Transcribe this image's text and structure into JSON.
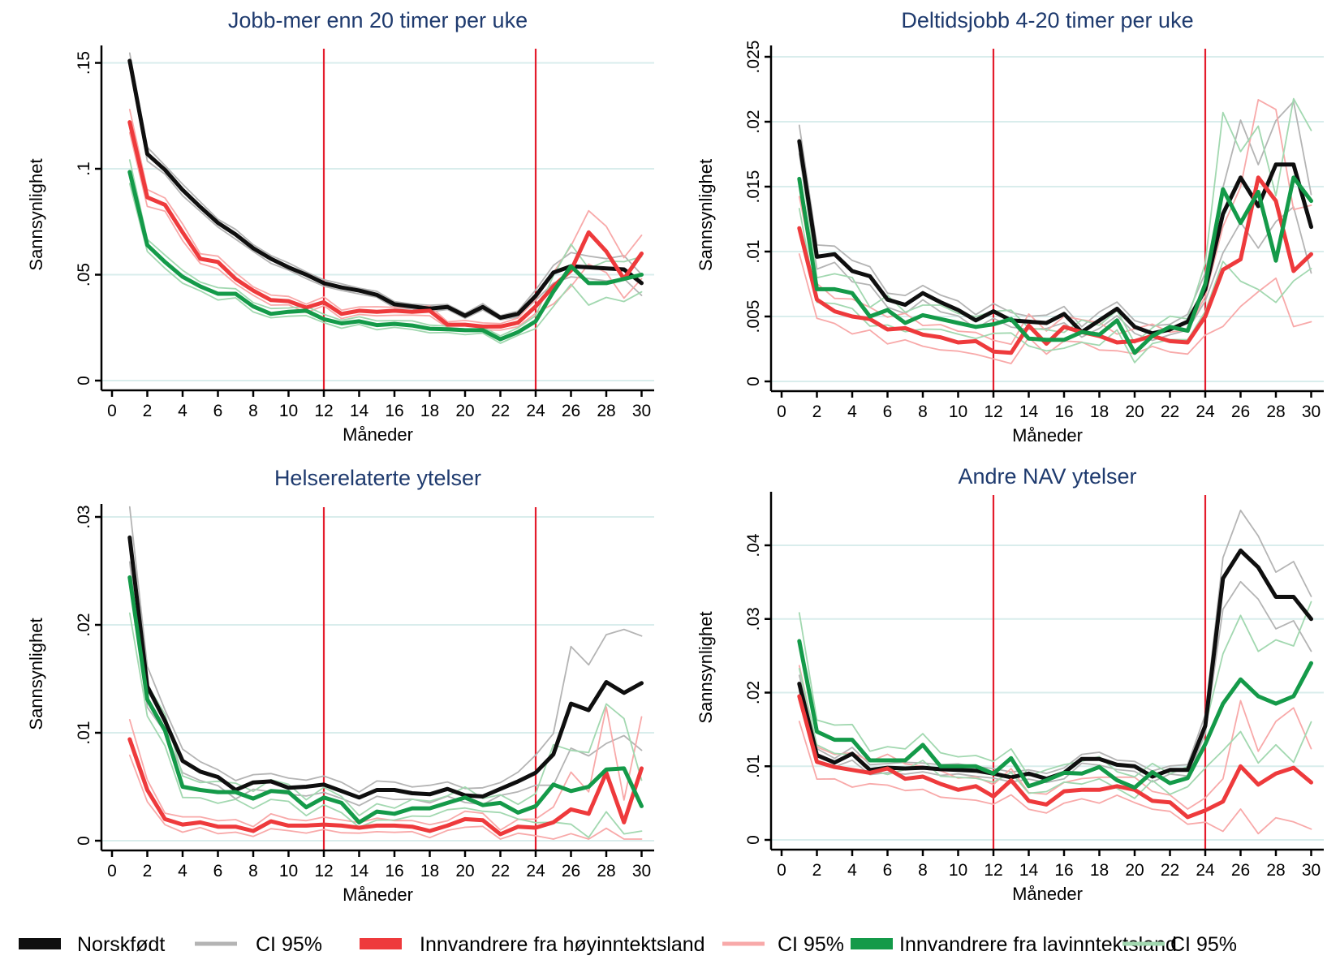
{
  "figure": {
    "ylabel": "Sannsynlighet",
    "xlabel": "Måneder",
    "x_tick_labels": [
      "0",
      "2",
      "4",
      "6",
      "8",
      "10",
      "12",
      "14",
      "16",
      "18",
      "20",
      "22",
      "24",
      "26",
      "28",
      "30"
    ],
    "months": [
      1,
      2,
      3,
      4,
      5,
      6,
      7,
      8,
      9,
      10,
      11,
      12,
      13,
      14,
      15,
      16,
      17,
      18,
      19,
      20,
      21,
      22,
      23,
      24,
      25,
      26,
      27,
      28,
      29,
      30
    ],
    "vline_months": [
      12,
      24
    ],
    "colors": {
      "norskfodt": "#0f0f0f",
      "hoyinntektsland": "#ee3a3c",
      "lavinntektsland": "#149a49",
      "ci_gray": "#b4b4b4",
      "ci_pink": "#f8a9a9",
      "ci_lightgreen": "#a2d8b0",
      "vline_red": "#e41c2c",
      "gridline": "#d9edec",
      "title_navy": "#1e3a6e"
    }
  },
  "legend": {
    "items": [
      {
        "label": "Norskfødt",
        "type": "bar",
        "color_key": "norskfodt"
      },
      {
        "label": "CI 95%",
        "type": "line",
        "color_key": "ci_gray"
      },
      {
        "label": "Innvandrere fra høyinntektsland",
        "type": "bar",
        "color_key": "hoyinntektsland"
      },
      {
        "label": "CI 95%",
        "type": "line",
        "color_key": "ci_pink"
      },
      {
        "label": "Innvandrere fra lavinntektsland",
        "type": "bar",
        "color_key": "lavinntektsland"
      },
      {
        "label": "CI 95%",
        "type": "line",
        "color_key": "ci_lightgreen"
      }
    ]
  },
  "chart_data": [
    {
      "type": "line",
      "title": "Jobb-mer enn 20 timer per uke",
      "xlabel": "Måneder",
      "ylabel": "Sannsynlighet",
      "ylim": [
        0,
        0.157
      ],
      "ytick_values": [
        0,
        0.05,
        0.1,
        0.15
      ],
      "ytick_labels": [
        "0",
        ".05",
        ".1",
        ".15"
      ],
      "series": [
        {
          "name": "Norskfødt",
          "color_key": "norskfodt",
          "ci_color_key": "ci_gray",
          "ci_frac_early": 0.02,
          "ci_frac_late": 0.09,
          "ci_abs": 0.0006,
          "values": [
            0.151,
            0.107,
            0.0995,
            0.09,
            0.082,
            0.0745,
            0.069,
            0.0625,
            0.0575,
            0.0535,
            0.05,
            0.046,
            0.044,
            0.0425,
            0.0405,
            0.036,
            0.035,
            0.034,
            0.0348,
            0.0306,
            0.0348,
            0.0297,
            0.0315,
            0.04,
            0.051,
            0.054,
            0.0535,
            0.053,
            0.0525,
            0.046
          ]
        },
        {
          "name": "Innvandrere fra høyinntektsland",
          "color_key": "hoyinntektsland",
          "ci_color_key": "ci_pink",
          "ci_frac_early": 0.035,
          "ci_frac_late": 0.17,
          "ci_abs": 0.0008,
          "values": [
            0.122,
            0.0865,
            0.083,
            0.07,
            0.0575,
            0.056,
            0.048,
            0.0425,
            0.038,
            0.0375,
            0.0345,
            0.037,
            0.0315,
            0.033,
            0.0325,
            0.033,
            0.0325,
            0.033,
            0.0264,
            0.0264,
            0.0255,
            0.0255,
            0.0274,
            0.035,
            0.0445,
            0.052,
            0.07,
            0.061,
            0.048,
            0.06
          ]
        },
        {
          "name": "Innvandrere fra lavinntektsland",
          "color_key": "lavinntektsland",
          "ci_color_key": "ci_lightgreen",
          "ci_frac_early": 0.04,
          "ci_frac_late": 0.17,
          "ci_abs": 0.0008,
          "values": [
            0.0985,
            0.064,
            0.056,
            0.049,
            0.0445,
            0.041,
            0.041,
            0.035,
            0.0315,
            0.0325,
            0.033,
            0.029,
            0.027,
            0.028,
            0.0262,
            0.0268,
            0.026,
            0.0245,
            0.0242,
            0.0238,
            0.0238,
            0.0195,
            0.0229,
            0.028,
            0.042,
            0.054,
            0.046,
            0.046,
            0.048,
            0.05
          ]
        }
      ]
    },
    {
      "type": "line",
      "title": "Deltidsjobb 4-20 timer per uke",
      "xlabel": "Måneder",
      "ylabel": "Sannsynlighet",
      "ylim": [
        0,
        0.0256
      ],
      "ytick_values": [
        0,
        0.005,
        0.01,
        0.015,
        0.02,
        0.025
      ],
      "ytick_labels": [
        "0",
        ".005",
        ".01",
        ".015",
        ".02",
        ".025"
      ],
      "series": [
        {
          "name": "Norskfødt",
          "color_key": "norskfodt",
          "ci_color_key": "ci_gray",
          "ci_frac_early": 0.05,
          "ci_frac_late": 0.22,
          "ci_abs": 0.0003,
          "values": [
            0.0185,
            0.0096,
            0.0098,
            0.0085,
            0.0081,
            0.0063,
            0.0059,
            0.0068,
            0.0061,
            0.0055,
            0.0047,
            0.0054,
            0.0047,
            0.0046,
            0.0045,
            0.0052,
            0.0038,
            0.0047,
            0.0056,
            0.0042,
            0.0037,
            0.004,
            0.0046,
            0.0071,
            0.0129,
            0.0157,
            0.0135,
            0.0167,
            0.0167,
            0.0119
          ]
        },
        {
          "name": "Innvandrere fra høyinntektsland",
          "color_key": "hoyinntektsland",
          "ci_color_key": "ci_pink",
          "ci_frac_early": 0.14,
          "ci_frac_late": 0.45,
          "ci_abs": 0.0004,
          "values": [
            0.0118,
            0.0063,
            0.0054,
            0.005,
            0.0048,
            0.004,
            0.0041,
            0.0036,
            0.0034,
            0.003,
            0.0031,
            0.0023,
            0.0022,
            0.0043,
            0.0029,
            0.0042,
            0.0038,
            0.0035,
            0.003,
            0.0031,
            0.0035,
            0.0031,
            0.003,
            0.005,
            0.0086,
            0.0094,
            0.0157,
            0.0139,
            0.0085,
            0.0098
          ]
        },
        {
          "name": "Innvandrere fra lavinntektsland",
          "color_key": "lavinntektsland",
          "ci_color_key": "ci_lightgreen",
          "ci_frac_early": 0.1,
          "ci_frac_late": 0.4,
          "ci_abs": 0.0004,
          "values": [
            0.0156,
            0.0071,
            0.0071,
            0.0068,
            0.005,
            0.0055,
            0.0045,
            0.0051,
            0.0048,
            0.0045,
            0.0042,
            0.0044,
            0.0048,
            0.0033,
            0.0032,
            0.0032,
            0.0038,
            0.0036,
            0.0047,
            0.0022,
            0.0035,
            0.0042,
            0.0039,
            0.0075,
            0.0148,
            0.0122,
            0.0146,
            0.0093,
            0.0157,
            0.0139
          ]
        }
      ]
    },
    {
      "type": "line",
      "title": "Helserelaterte ytelser",
      "xlabel": "Måneder",
      "ylabel": "Sannsynlighet",
      "ylim": [
        0,
        0.0309
      ],
      "ytick_values": [
        0,
        0.01,
        0.02,
        0.03
      ],
      "ytick_labels": [
        "0",
        ".01",
        ".02",
        ".03"
      ],
      "series": [
        {
          "name": "Norskfødt",
          "color_key": "norskfodt",
          "ci_color_key": "ci_gray",
          "ci_frac_early": 0.09,
          "ci_frac_late": 0.33,
          "ci_abs": 0.0003,
          "values": [
            0.0281,
            0.0143,
            0.0111,
            0.0074,
            0.0064,
            0.0059,
            0.0047,
            0.0054,
            0.0055,
            0.0049,
            0.005,
            0.0052,
            0.0046,
            0.004,
            0.0047,
            0.0047,
            0.0044,
            0.0043,
            0.0048,
            0.0042,
            0.0041,
            0.0048,
            0.0055,
            0.0063,
            0.008,
            0.0127,
            0.0121,
            0.0147,
            0.0137,
            0.0146
          ]
        },
        {
          "name": "Innvandrere fra høyinntektsland",
          "color_key": "hoyinntektsland",
          "ci_color_key": "ci_pink",
          "ci_frac_early": 0.12,
          "ci_frac_late": 0.85,
          "ci_abs": 0.0004,
          "values": [
            0.0094,
            0.0047,
            0.002,
            0.0015,
            0.0017,
            0.0013,
            0.0013,
            0.0009,
            0.0018,
            0.0014,
            0.0014,
            0.0015,
            0.0014,
            0.0012,
            0.0014,
            0.0014,
            0.0013,
            0.0009,
            0.0014,
            0.002,
            0.0019,
            0.0006,
            0.0013,
            0.0012,
            0.0017,
            0.0029,
            0.0025,
            0.0063,
            0.0017,
            0.0067
          ]
        },
        {
          "name": "Innvandrere fra lavinntektsland",
          "color_key": "lavinntektsland",
          "ci_color_key": "ci_lightgreen",
          "ci_frac_early": 0.1,
          "ci_frac_late": 0.7,
          "ci_abs": 0.0004,
          "values": [
            0.0244,
            0.0131,
            0.0102,
            0.005,
            0.0047,
            0.0045,
            0.0045,
            0.0039,
            0.0046,
            0.0045,
            0.0031,
            0.004,
            0.0035,
            0.0017,
            0.0027,
            0.0025,
            0.003,
            0.003,
            0.0035,
            0.004,
            0.0033,
            0.0035,
            0.0026,
            0.0032,
            0.0052,
            0.0046,
            0.005,
            0.0066,
            0.0067,
            0.0032
          ]
        }
      ]
    },
    {
      "type": "line",
      "title": "Andre NAV ytelser",
      "xlabel": "Måneder",
      "ylabel": "Sannsynlighet",
      "ylim": [
        0,
        0.0468
      ],
      "ytick_values": [
        0,
        0.01,
        0.02,
        0.03,
        0.04
      ],
      "ytick_labels": [
        "0",
        ".01",
        ".02",
        ".03",
        ".04"
      ],
      "series": [
        {
          "name": "Norskfødt",
          "color_key": "norskfodt",
          "ci_color_key": "ci_gray",
          "ci_frac_early": 0.04,
          "ci_frac_late": 0.11,
          "ci_abs": 0.0003,
          "values": [
            0.0212,
            0.0115,
            0.0105,
            0.0117,
            0.0095,
            0.0098,
            0.0097,
            0.0098,
            0.0096,
            0.0095,
            0.0094,
            0.009,
            0.0085,
            0.009,
            0.0083,
            0.0091,
            0.011,
            0.011,
            0.0102,
            0.01,
            0.0086,
            0.0095,
            0.0095,
            0.0155,
            0.0355,
            0.0393,
            0.037,
            0.033,
            0.033,
            0.03
          ]
        },
        {
          "name": "Innvandrere fra høyinntektsland",
          "color_key": "hoyinntektsland",
          "ci_color_key": "ci_pink",
          "ci_frac_early": 0.16,
          "ci_frac_late": 0.7,
          "ci_abs": 0.0004,
          "values": [
            0.0195,
            0.0106,
            0.0099,
            0.0095,
            0.0091,
            0.0097,
            0.0083,
            0.0086,
            0.0076,
            0.0068,
            0.0073,
            0.0059,
            0.0081,
            0.0053,
            0.0048,
            0.0066,
            0.0068,
            0.0068,
            0.0073,
            0.0068,
            0.0053,
            0.0051,
            0.0031,
            0.004,
            0.0052,
            0.01,
            0.0075,
            0.009,
            0.0098,
            0.0078
          ]
        },
        {
          "name": "Innvandrere fra lavinntektsland",
          "color_key": "lavinntektsland",
          "ci_color_key": "ci_lightgreen",
          "ci_frac_early": 0.1,
          "ci_frac_late": 0.36,
          "ci_abs": 0.0005,
          "values": [
            0.027,
            0.0147,
            0.0136,
            0.0136,
            0.0108,
            0.0108,
            0.0108,
            0.0129,
            0.01,
            0.01,
            0.01,
            0.009,
            0.0111,
            0.0073,
            0.0081,
            0.0091,
            0.009,
            0.0099,
            0.0081,
            0.0071,
            0.0092,
            0.0077,
            0.0084,
            0.013,
            0.0185,
            0.0218,
            0.0195,
            0.0185,
            0.0195,
            0.024
          ]
        }
      ]
    }
  ]
}
